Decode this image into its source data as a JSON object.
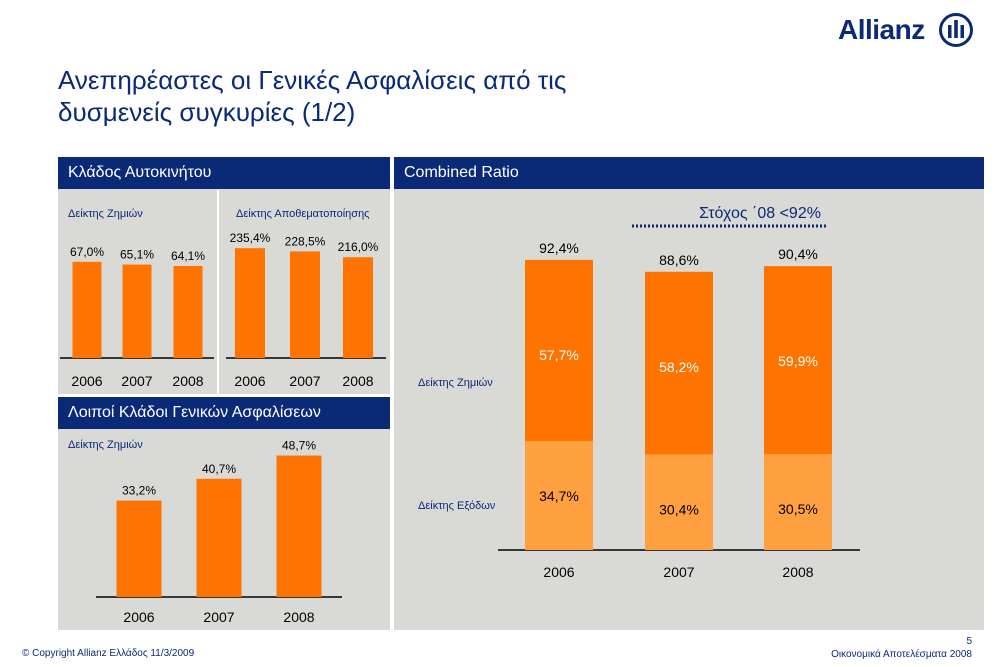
{
  "slide": {
    "title_line1": "Ανεπηρέαστες οι Γενικές Ασφαλίσεις από τις",
    "title_line2": "δυσμενείς συγκυρίες (1/2)",
    "logo_text": "Allianz",
    "page_number": "5",
    "footer_left": "© Copyright  Allianz Ελλάδος 11/3/2009",
    "footer_right": "Οικονομικά Αποτελέσματα 2008"
  },
  "colors": {
    "navy": "#0a2a78",
    "orange": "#ff7300",
    "light_orange": "#ffa040",
    "panel_grey": "#d9d9d6"
  },
  "panels": {
    "motor": {
      "header": "Κλάδος Αυτοκινήτου"
    },
    "other": {
      "header": "Λοιποί Κλάδοι Γενικών Ασφαλίσεων"
    },
    "combined": {
      "header": "Combined Ratio"
    }
  },
  "chart_data": [
    {
      "id": "motor-loss",
      "type": "bar",
      "title": "Δείκτης Ζημιών",
      "categories": [
        "2006",
        "2007",
        "2008"
      ],
      "values": [
        67.0,
        65.1,
        64.1
      ],
      "labels": [
        "67,0%",
        "65,1%",
        "64,1%"
      ],
      "color": "#ff7300"
    },
    {
      "id": "motor-reserve",
      "type": "bar",
      "title": "Δείκτης Αποθεματοποίησης",
      "categories": [
        "2006",
        "2007",
        "2008"
      ],
      "values": [
        235.4,
        228.5,
        216.0
      ],
      "labels": [
        "235,4%",
        "228,5%",
        "216,0%"
      ],
      "color": "#ff7300"
    },
    {
      "id": "other-loss",
      "type": "bar",
      "title": "Δείκτης Ζημιών",
      "categories": [
        "2006",
        "2007",
        "2008"
      ],
      "values": [
        33.2,
        40.7,
        48.7
      ],
      "labels": [
        "33,2%",
        "40,7%",
        "48,7%"
      ],
      "color": "#ff7300"
    },
    {
      "id": "combined-ratio",
      "type": "bar",
      "stacked": true,
      "categories": [
        "2006",
        "2007",
        "2008"
      ],
      "series": [
        {
          "name": "Δείκτης Εξόδων",
          "values": [
            34.7,
            30.4,
            30.5
          ],
          "labels": [
            "34,7%",
            "30,4%",
            "30,5%"
          ],
          "color": "#ffa040"
        },
        {
          "name": "Δείκτης Ζημιών",
          "values": [
            57.7,
            58.2,
            59.9
          ],
          "labels": [
            "57,7%",
            "58,2%",
            "59,9%"
          ],
          "color": "#ff7300"
        }
      ],
      "totals": [
        92.4,
        88.6,
        90.4
      ],
      "total_labels": [
        "92,4%",
        "88,6%",
        "90,4%"
      ],
      "target_label": "Στόχος ΄08 <92%"
    }
  ]
}
